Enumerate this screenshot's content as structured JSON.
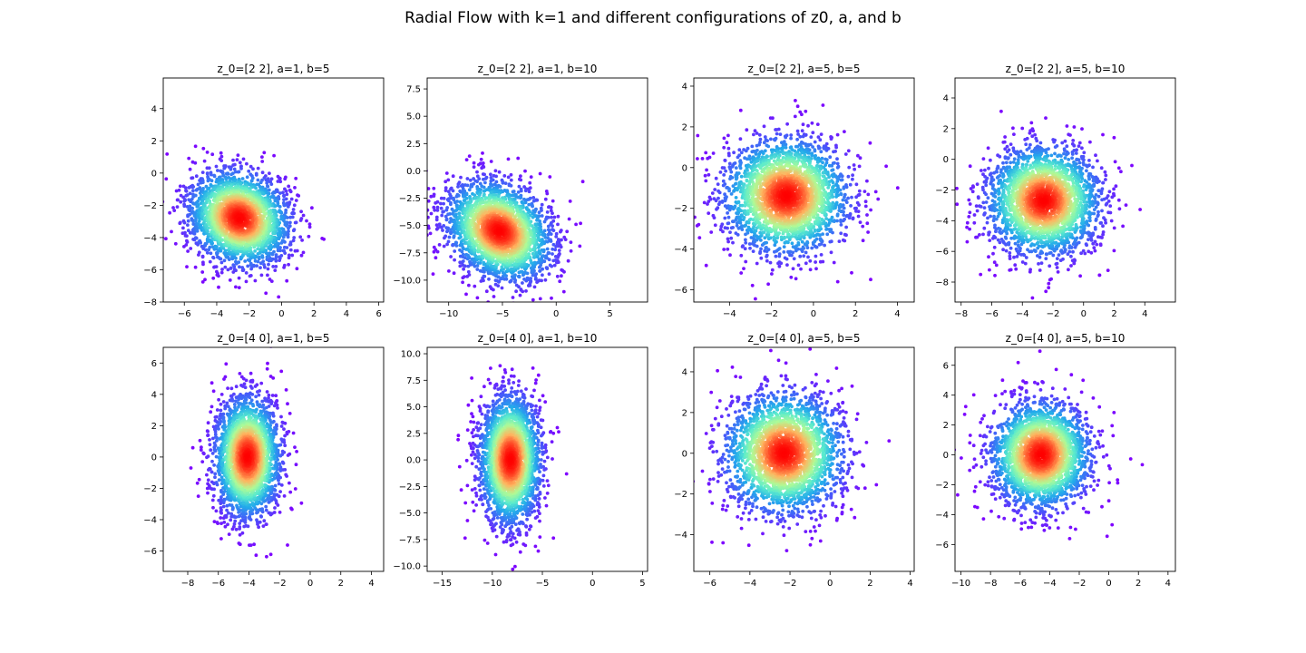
{
  "figure": {
    "title": "Radial Flow with k=1 and different configurations of z0, a, and b"
  },
  "chart_data": [
    {
      "type": "scatter",
      "title": "z_0=[2 2], a=1, b=5",
      "xlim": [
        -7.3,
        6.3
      ],
      "ylim": [
        -8.0,
        5.9
      ],
      "xticks": [
        -6,
        -4,
        -2,
        0,
        2,
        4,
        6
      ],
      "xtick_labels": [
        "−6",
        "−4",
        "−2",
        "0",
        "2",
        "4",
        "6"
      ],
      "yticks": [
        -8,
        -6,
        -4,
        -2,
        0,
        2,
        4
      ],
      "ytick_labels": [
        "−8",
        "−6",
        "−4",
        "−2",
        "0",
        "2",
        "4"
      ],
      "distribution": {
        "center": [
          -2.6,
          -2.8
        ],
        "sd": [
          1.6,
          1.35
        ],
        "rotation_deg": -35
      },
      "colormap": "rainbow (purple = low density, red = high density)",
      "grid": false
    },
    {
      "type": "scatter",
      "title": "z_0=[2 2], a=1, b=10",
      "xlim": [
        -12.0,
        8.5
      ],
      "ylim": [
        -12.0,
        8.5
      ],
      "xticks": [
        -10,
        -5,
        0,
        5
      ],
      "xtick_labels": [
        "−10",
        "−5",
        "0",
        "5"
      ],
      "yticks": [
        -10.0,
        -7.5,
        -5.0,
        -2.5,
        0.0,
        2.5,
        5.0,
        7.5
      ],
      "ytick_labels": [
        "−10.0",
        "−7.5",
        "−5.0",
        "−2.5",
        "0.0",
        "2.5",
        "5.0",
        "7.5"
      ],
      "distribution": {
        "center": [
          -5.3,
          -5.5
        ],
        "sd": [
          2.6,
          2.0
        ],
        "rotation_deg": -38
      },
      "colormap": "rainbow (purple = low density, red = high density)",
      "grid": false
    },
    {
      "type": "scatter",
      "title": "z_0=[2 2], a=5, b=5",
      "xlim": [
        -5.7,
        4.8
      ],
      "ylim": [
        -6.6,
        4.4
      ],
      "xticks": [
        -4,
        -2,
        0,
        2,
        4
      ],
      "xtick_labels": [
        "−4",
        "−2",
        "0",
        "2",
        "4"
      ],
      "yticks": [
        -6,
        -4,
        -2,
        0,
        2,
        4
      ],
      "ytick_labels": [
        "−6",
        "−4",
        "−2",
        "0",
        "2",
        "4"
      ],
      "distribution": {
        "center": [
          -1.3,
          -1.4
        ],
        "sd": [
          1.45,
          1.4
        ],
        "rotation_deg": -10
      },
      "colormap": "rainbow (purple = low density, red = high density)",
      "grid": false
    },
    {
      "type": "scatter",
      "title": "z_0=[2 2], a=5, b=10",
      "xlim": [
        -8.4,
        6.0
      ],
      "ylim": [
        -9.3,
        5.3
      ],
      "xticks": [
        -8,
        -6,
        -4,
        -2,
        0,
        2,
        4
      ],
      "xtick_labels": [
        "−8",
        "−6",
        "−4",
        "−2",
        "0",
        "2",
        "4"
      ],
      "yticks": [
        -8,
        -6,
        -4,
        -2,
        0,
        2,
        4
      ],
      "ytick_labels": [
        "−8",
        "−6",
        "−4",
        "−2",
        "0",
        "2",
        "4"
      ],
      "distribution": {
        "center": [
          -2.6,
          -2.7
        ],
        "sd": [
          1.8,
          1.75
        ],
        "rotation_deg": -10
      },
      "colormap": "rainbow (purple = low density, red = high density)",
      "grid": false
    },
    {
      "type": "scatter",
      "title": "z_0=[4 0], a=1, b=5",
      "xlim": [
        -9.6,
        4.8
      ],
      "ylim": [
        -7.3,
        7.0
      ],
      "xticks": [
        -8,
        -6,
        -4,
        -2,
        0,
        2,
        4
      ],
      "xtick_labels": [
        "−8",
        "−6",
        "−4",
        "−2",
        "0",
        "2",
        "4"
      ],
      "yticks": [
        -6,
        -4,
        -2,
        0,
        2,
        4,
        6
      ],
      "ytick_labels": [
        "−6",
        "−4",
        "−2",
        "0",
        "2",
        "4",
        "6"
      ],
      "distribution": {
        "center": [
          -4.1,
          0.0
        ],
        "sd": [
          1.05,
          1.9
        ],
        "rotation_deg": 0
      },
      "colormap": "rainbow (purple = low density, red = high density)",
      "grid": false
    },
    {
      "type": "scatter",
      "title": "z_0=[4 0], a=1, b=10",
      "xlim": [
        -16.5,
        5.5
      ],
      "ylim": [
        -10.5,
        10.6
      ],
      "xticks": [
        -15,
        -10,
        -5,
        0,
        5
      ],
      "xtick_labels": [
        "−15",
        "−10",
        "−5",
        "0",
        "5"
      ],
      "yticks": [
        -10.0,
        -7.5,
        -5.0,
        -2.5,
        0.0,
        2.5,
        5.0,
        7.5,
        10.0
      ],
      "ytick_labels": [
        "−10.0",
        "−7.5",
        "−5.0",
        "−2.5",
        "0.0",
        "2.5",
        "5.0",
        "7.5",
        "10.0"
      ],
      "distribution": {
        "center": [
          -8.2,
          0.0
        ],
        "sd": [
          1.5,
          3.0
        ],
        "rotation_deg": 0
      },
      "colormap": "rainbow (purple = low density, red = high density)",
      "grid": false
    },
    {
      "type": "scatter",
      "title": "z_0=[4 0], a=5, b=5",
      "xlim": [
        -6.8,
        4.2
      ],
      "ylim": [
        -5.8,
        5.2
      ],
      "xticks": [
        -6,
        -4,
        -2,
        0,
        2,
        4
      ],
      "xtick_labels": [
        "−6",
        "−4",
        "−2",
        "0",
        "2",
        "4"
      ],
      "yticks": [
        -4,
        -2,
        0,
        2,
        4
      ],
      "ytick_labels": [
        "−4",
        "−2",
        "0",
        "2",
        "4"
      ],
      "distribution": {
        "center": [
          -2.3,
          0.0
        ],
        "sd": [
          1.45,
          1.45
        ],
        "rotation_deg": 0
      },
      "colormap": "rainbow (purple = low density, red = high density)",
      "grid": false
    },
    {
      "type": "scatter",
      "title": "z_0=[4 0], a=5, b=10",
      "xlim": [
        -10.4,
        4.5
      ],
      "ylim": [
        -7.8,
        7.2
      ],
      "xticks": [
        -10,
        -8,
        -6,
        -4,
        -2,
        0,
        2,
        4
      ],
      "xtick_labels": [
        "−10",
        "−8",
        "−6",
        "−4",
        "−2",
        "0",
        "2",
        "4"
      ],
      "yticks": [
        -6,
        -4,
        -2,
        0,
        2,
        4,
        6
      ],
      "ytick_labels": [
        "−6",
        "−4",
        "−2",
        "0",
        "2",
        "4",
        "6"
      ],
      "distribution": {
        "center": [
          -4.6,
          0.0
        ],
        "sd": [
          1.65,
          1.75
        ],
        "rotation_deg": 0
      },
      "colormap": "rainbow (purple = low density, red = high density)",
      "grid": false
    }
  ]
}
